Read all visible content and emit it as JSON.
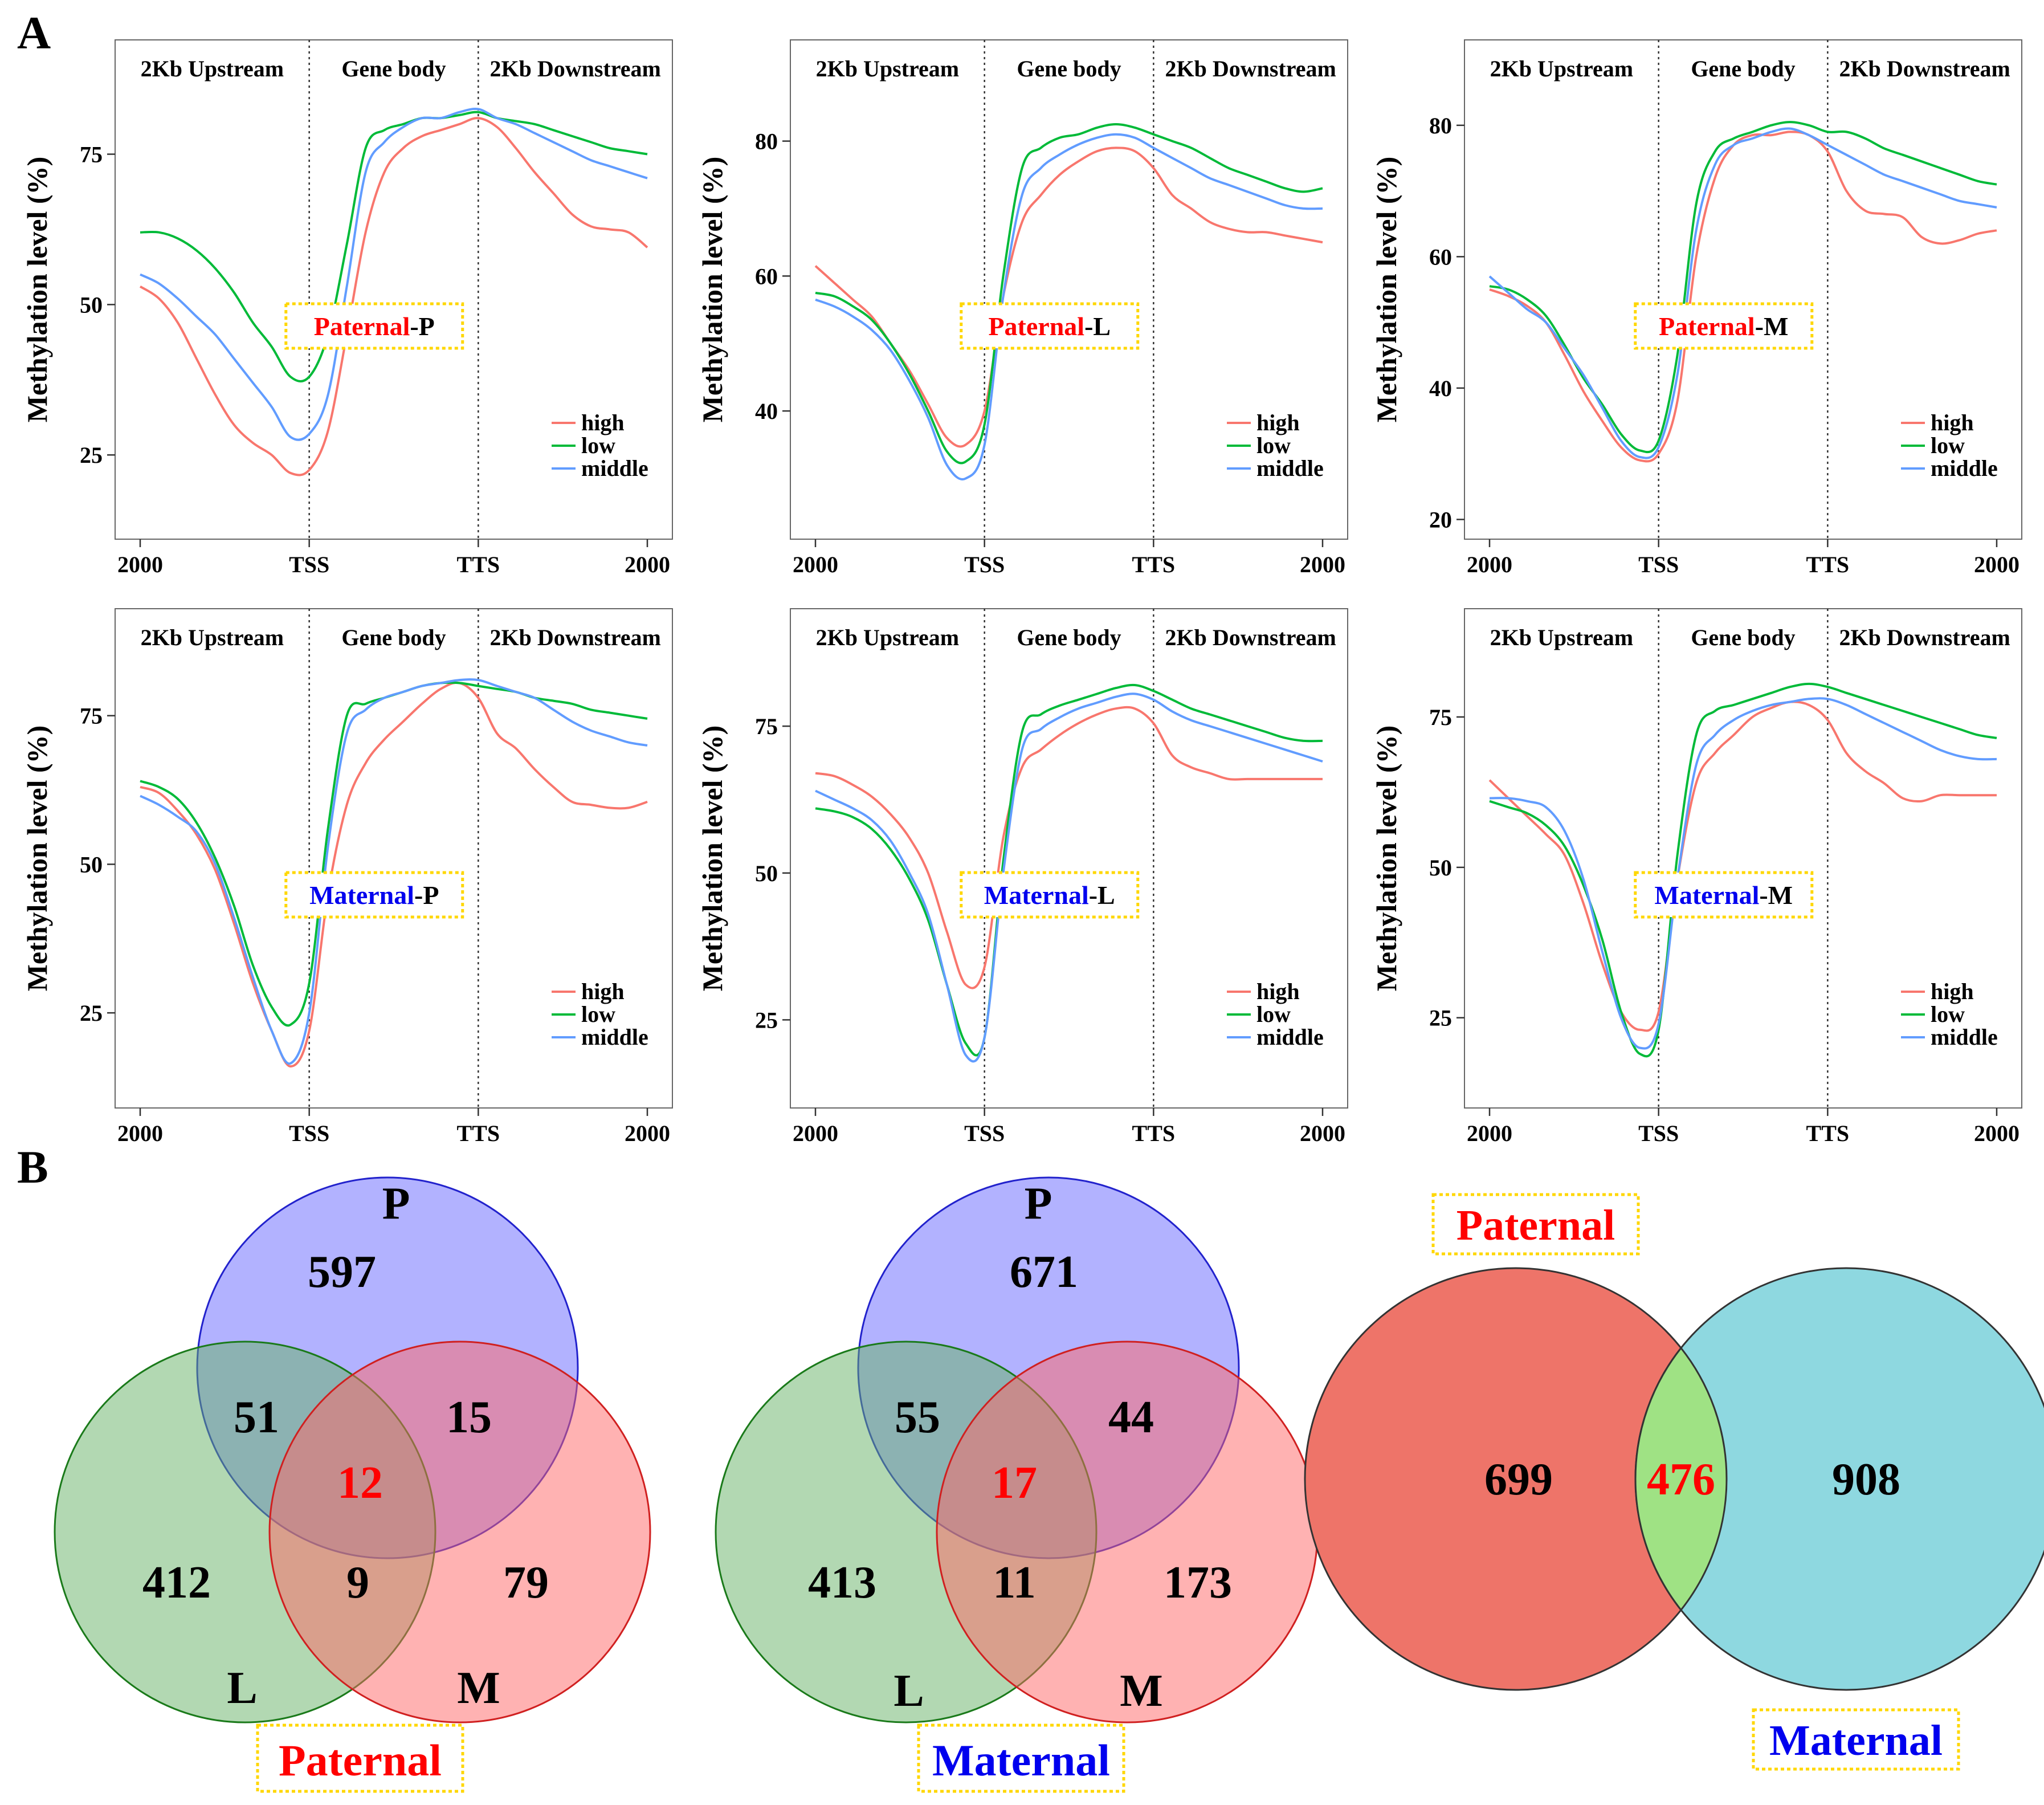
{
  "panel_labels": {
    "a": "A",
    "b": "B"
  },
  "colors": {
    "high": "#f8766d",
    "low": "#00ba38",
    "middle": "#619cff",
    "paternal_text": "#ff0000",
    "maternal_text": "#0000ee",
    "badge_border": "#ffd700",
    "venn_p": "#6666ff",
    "venn_l": "#66b266",
    "venn_m": "#ff6666",
    "venn_paternal": "#ee7469",
    "venn_maternal": "#8ed8e0",
    "venn_overlap": "#9fe284"
  },
  "profile_labels": {
    "ylabel": "Methylation level (%)",
    "regions": [
      "2Kb Upstream",
      "Gene body",
      "2Kb Downstream"
    ],
    "x_ticks": [
      "2000",
      "TSS",
      "TTS",
      "2000"
    ],
    "legend": [
      "high",
      "low",
      "middle"
    ]
  },
  "chart_data": [
    {
      "type": "line",
      "badge_origin": "Paternal",
      "badge_tissue": "-P",
      "ylim": [
        11,
        94
      ],
      "yticks": [
        25,
        50,
        75
      ],
      "series": [
        {
          "name": "high",
          "values": [
            53,
            51,
            47,
            41,
            35,
            30,
            27,
            25,
            22,
            22.5,
            29,
            45,
            62,
            72,
            76,
            78,
            79,
            80,
            81,
            79.5,
            76,
            72,
            68.5,
            65,
            63,
            62.5,
            62,
            59.5
          ]
        },
        {
          "name": "low",
          "values": [
            62,
            62,
            61,
            59,
            56,
            52,
            47,
            43,
            38,
            38,
            45,
            60,
            76,
            79,
            80,
            81,
            81,
            81.5,
            82,
            81,
            80.5,
            80,
            79,
            78,
            77,
            76,
            75.5,
            75
          ]
        },
        {
          "name": "middle",
          "values": [
            55,
            53.5,
            51,
            48,
            45,
            41,
            37,
            33,
            28,
            28.5,
            35,
            53,
            72,
            77,
            79.5,
            81,
            81,
            82,
            82.5,
            81,
            80,
            78.5,
            77,
            75.5,
            74,
            73,
            72,
            71
          ]
        }
      ]
    },
    {
      "type": "line",
      "badge_origin": "Paternal",
      "badge_tissue": "-L",
      "ylim": [
        21,
        95
      ],
      "yticks": [
        40,
        60,
        80
      ],
      "series": [
        {
          "name": "high",
          "values": [
            61.5,
            59,
            56.5,
            54,
            50,
            46,
            41,
            36,
            35,
            40,
            57,
            68,
            72,
            75,
            77,
            78.5,
            79,
            78.5,
            76,
            72,
            70,
            68,
            67,
            66.5,
            66.5,
            66,
            65.5,
            65
          ]
        },
        {
          "name": "low",
          "values": [
            57.5,
            57,
            55.5,
            53.5,
            50,
            45.5,
            40,
            34,
            32.5,
            38,
            60,
            76,
            79,
            80.5,
            81,
            82,
            82.5,
            82,
            81,
            80,
            79,
            77.5,
            76,
            75,
            74,
            73,
            72.5,
            73
          ]
        },
        {
          "name": "middle",
          "values": [
            56.5,
            55.5,
            54,
            52,
            49,
            44.5,
            39,
            32,
            30,
            35,
            57,
            72,
            76,
            78,
            79.5,
            80.5,
            81,
            80.5,
            79,
            77.5,
            76,
            74.5,
            73.5,
            72.5,
            71.5,
            70.5,
            70,
            70
          ]
        }
      ]
    },
    {
      "type": "line",
      "badge_origin": "Paternal",
      "badge_tissue": "-M",
      "ylim": [
        17,
        93
      ],
      "yticks": [
        20,
        40,
        60,
        80
      ],
      "series": [
        {
          "name": "high",
          "values": [
            55,
            54,
            52.5,
            50,
            45,
            39.5,
            35,
            31,
            29,
            30,
            38,
            60,
            72,
            77,
            78.5,
            78.5,
            79,
            78.5,
            76,
            70,
            67,
            66.5,
            66,
            63,
            62,
            62.5,
            63.5,
            64
          ]
        },
        {
          "name": "low",
          "values": [
            55.5,
            55,
            53.5,
            51,
            46.5,
            41.5,
            37.5,
            33,
            30.5,
            32,
            45,
            68,
            76,
            78,
            79,
            80,
            80.5,
            80,
            79,
            79,
            78,
            76.5,
            75.5,
            74.5,
            73.5,
            72.5,
            71.5,
            71
          ]
        },
        {
          "name": "middle",
          "values": [
            57,
            54.5,
            52,
            50,
            46,
            42,
            37,
            32,
            29.5,
            31,
            42,
            64,
            74,
            77,
            78,
            79,
            79.5,
            78.5,
            77,
            75.5,
            74,
            72.5,
            71.5,
            70.5,
            69.5,
            68.5,
            68,
            67.5
          ]
        }
      ]
    },
    {
      "type": "line",
      "badge_origin": "Maternal",
      "badge_tissue": "-P",
      "ylim": [
        9,
        93
      ],
      "yticks": [
        25,
        50,
        75
      ],
      "series": [
        {
          "name": "high",
          "values": [
            63,
            62,
            59,
            55,
            49,
            40,
            30,
            22,
            16,
            22,
            45,
            60,
            67,
            71,
            74,
            77,
            79.5,
            80.5,
            78,
            72,
            69.5,
            66,
            63,
            60.5,
            60,
            59.5,
            59.5,
            60.5
          ]
        },
        {
          "name": "low",
          "values": [
            64,
            63,
            61,
            57,
            51,
            43,
            33,
            26,
            23,
            30,
            56,
            75,
            77,
            78,
            79,
            80,
            80.5,
            80.5,
            80,
            79.5,
            79,
            78,
            77.5,
            77,
            76,
            75.5,
            75,
            74.5
          ]
        },
        {
          "name": "middle",
          "values": [
            61.5,
            60,
            58,
            55.5,
            50,
            41,
            31,
            22,
            16.5,
            25,
            53,
            72,
            76,
            78,
            79,
            80,
            80.5,
            81,
            81,
            80,
            79,
            78,
            76,
            74,
            72.5,
            71.5,
            70.5,
            70
          ]
        }
      ]
    },
    {
      "type": "line",
      "badge_origin": "Maternal",
      "badge_tissue": "-L",
      "ylim": [
        10,
        95
      ],
      "yticks": [
        25,
        50,
        75
      ],
      "series": [
        {
          "name": "high",
          "values": [
            67,
            66.5,
            65,
            63,
            60,
            56,
            50,
            40,
            31,
            34,
            56,
            68,
            71,
            73.5,
            75.5,
            77,
            78,
            78,
            75.5,
            70,
            68,
            67,
            66,
            66,
            66,
            66,
            66,
            66
          ]
        },
        {
          "name": "low",
          "values": [
            61,
            60.5,
            59.5,
            57.5,
            54,
            49,
            42,
            31,
            21,
            22,
            52,
            74,
            77,
            78.5,
            79.5,
            80.5,
            81.5,
            82,
            81,
            79.5,
            78,
            77,
            76,
            75,
            74,
            73,
            72.5,
            72.5
          ]
        },
        {
          "name": "middle",
          "values": [
            64,
            62.5,
            61,
            59,
            55.5,
            50,
            43,
            31,
            19,
            22,
            50,
            71,
            74.5,
            76.5,
            78,
            79,
            80,
            80.5,
            79.5,
            77.5,
            76,
            75,
            74,
            73,
            72,
            71,
            70,
            69
          ]
        }
      ]
    },
    {
      "type": "line",
      "badge_origin": "Maternal",
      "badge_tissue": "-M",
      "ylim": [
        10,
        93
      ],
      "yticks": [
        25,
        50,
        75
      ],
      "series": [
        {
          "name": "high",
          "values": [
            64.5,
            61.5,
            58.5,
            55.5,
            52,
            44,
            34,
            26,
            23,
            26,
            48,
            64,
            69,
            72,
            75,
            76.5,
            77.5,
            77,
            74.5,
            69,
            66,
            64,
            61.5,
            61,
            62,
            62,
            62,
            62
          ]
        },
        {
          "name": "low",
          "values": [
            61,
            60,
            59,
            57,
            53.5,
            47,
            38,
            26,
            19,
            23,
            52,
            72,
            76,
            77,
            78,
            79,
            80,
            80.5,
            80,
            79,
            78,
            77,
            76,
            75,
            74,
            73,
            72,
            71.5
          ]
        },
        {
          "name": "middle",
          "values": [
            61.5,
            61.5,
            61,
            60,
            56,
            48,
            36,
            25,
            20,
            24,
            48,
            67,
            72,
            74.5,
            76,
            77,
            77.5,
            78,
            78,
            77,
            75.5,
            74,
            72.5,
            71,
            69.5,
            68.5,
            68,
            68
          ]
        }
      ]
    }
  ],
  "venns": [
    {
      "sets": [
        "P",
        "L",
        "M"
      ],
      "p_only": "597",
      "l_only": "412",
      "m_only": "79",
      "pl": "51",
      "pm": "15",
      "lm": "9",
      "plm": "12",
      "badge": "Paternal"
    },
    {
      "sets": [
        "P",
        "L",
        "M"
      ],
      "p_only": "671",
      "l_only": "413",
      "m_only": "173",
      "pl": "55",
      "pm": "44",
      "lm": "11",
      "plm": "17",
      "badge": "Maternal"
    }
  ],
  "venn2": {
    "left_label": "Paternal",
    "right_label": "Maternal",
    "left_only": "699",
    "overlap": "476",
    "right_only": "908"
  }
}
